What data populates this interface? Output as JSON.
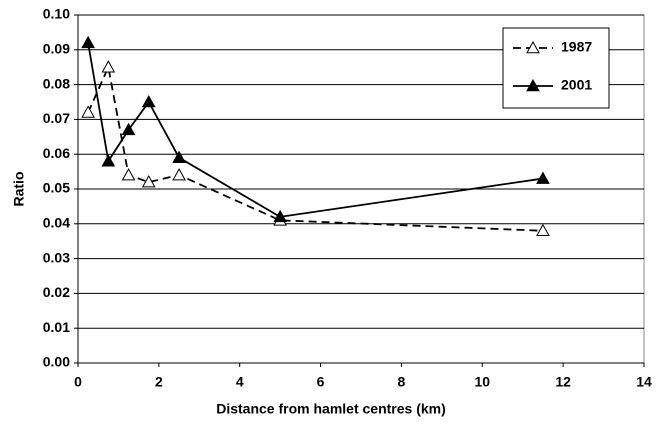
{
  "chart_data": {
    "type": "line",
    "x_label": "Distance from hamlet centres (km)",
    "y_label": "Ratio",
    "series": [
      {
        "name": "1987",
        "color": "#000000",
        "dashed": true,
        "marker": "open-triangle",
        "x": [
          0.25,
          0.75,
          1.25,
          1.75,
          2.5,
          5,
          11.5
        ],
        "values": [
          0.072,
          0.085,
          0.054,
          0.052,
          0.054,
          0.041,
          0.038
        ]
      },
      {
        "name": "2001",
        "color": "#000000",
        "dashed": false,
        "marker": "filled-triangle",
        "x": [
          0.25,
          0.75,
          1.25,
          1.75,
          2.5,
          5,
          11.5
        ],
        "values": [
          0.092,
          0.058,
          0.067,
          0.075,
          0.059,
          0.042,
          0.053
        ]
      }
    ],
    "xlim": [
      0,
      14
    ],
    "xticks": [
      0,
      2,
      4,
      6,
      8,
      10,
      12,
      14
    ],
    "ylim": [
      0,
      0.1
    ],
    "yticks": [
      {
        "value": 0,
        "label": "0.00"
      },
      0.01,
      0.02,
      0.03,
      0.04,
      0.05,
      0.06,
      0.07,
      0.08,
      0.09,
      {
        "value": 0.1,
        "label": "0.10"
      }
    ],
    "grid": true,
    "legend": "upper right"
  }
}
